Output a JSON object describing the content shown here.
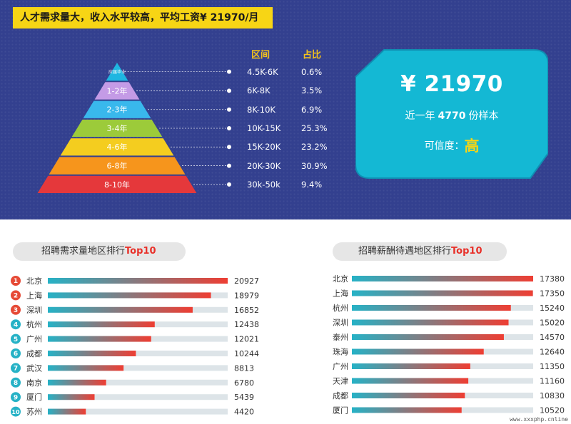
{
  "header": {
    "banner": "人才需求量大，收入水平较高，平均工资¥ 21970/月"
  },
  "pyramid": {
    "col_range": "区间",
    "col_share": "占比",
    "levels": [
      {
        "name": "应届毕业",
        "range": "4.5K-6K",
        "share": "0.6%",
        "color": "#1fb6e1"
      },
      {
        "name": "1-2年",
        "range": "6K-8K",
        "share": "3.5%",
        "color": "#c49be6"
      },
      {
        "name": "2-3年",
        "range": "8K-10K",
        "share": "6.9%",
        "color": "#39b8ec"
      },
      {
        "name": "3-4年",
        "range": "10K-15K",
        "share": "25.3%",
        "color": "#9ccb3a"
      },
      {
        "name": "4-6年",
        "range": "15K-20K",
        "share": "23.2%",
        "color": "#f4cd1f"
      },
      {
        "name": "6-8年",
        "range": "20K-30K",
        "share": "30.9%",
        "color": "#f6951c"
      },
      {
        "name": "8-10年",
        "range": "30k-50k",
        "share": "9.4%",
        "color": "#e5383b"
      }
    ]
  },
  "summary": {
    "salary": "¥ 21970",
    "sample_prefix": "近一年",
    "sample_count": "4770",
    "sample_suffix": "份样本",
    "credibility_label": "可信度：",
    "credibility_value": "高"
  },
  "chart_data": [
    {
      "type": "bar",
      "title_main": "招聘需求量地区排行",
      "title_highlight": "Top10",
      "categories": [
        "北京",
        "上海",
        "深圳",
        "杭州",
        "广州",
        "成都",
        "武汉",
        "南京",
        "厦门",
        "苏州"
      ],
      "values": [
        20927,
        18979,
        16852,
        12438,
        12021,
        10244,
        8813,
        6780,
        5439,
        4420
      ],
      "ranks": [
        "1",
        "2",
        "3",
        "4",
        "5",
        "6",
        "7",
        "8",
        "9",
        "10"
      ],
      "xlim": [
        0,
        20927
      ],
      "orientation": "horizontal",
      "rank_colors": [
        "#e64a36",
        "#e64a36",
        "#e64a36",
        "#26b2c6",
        "#26b2c6",
        "#26b2c6",
        "#26b2c6",
        "#26b2c6",
        "#26b2c6",
        "#26b2c6"
      ]
    },
    {
      "type": "bar",
      "title_main": "招聘薪酬待遇地区排行",
      "title_highlight": "Top10",
      "categories": [
        "北京",
        "上海",
        "杭州",
        "深圳",
        "泰州",
        "珠海",
        "广州",
        "天津",
        "成都",
        "厦门"
      ],
      "values": [
        17380,
        17350,
        15240,
        15020,
        14570,
        12640,
        11350,
        11160,
        10830,
        10520
      ],
      "xlim": [
        0,
        17380
      ],
      "orientation": "horizontal"
    }
  ],
  "colors": {
    "top_bg": "#33408f",
    "banner_bg": "#f7d515",
    "bar_start": "#26b2c6",
    "bar_end": "#ee3e33",
    "bar_track": "#dde4e8",
    "card_bg": "#14b8d4",
    "card_border": "#0f8fb3"
  },
  "watermark": "www.xxxphp.cnline"
}
